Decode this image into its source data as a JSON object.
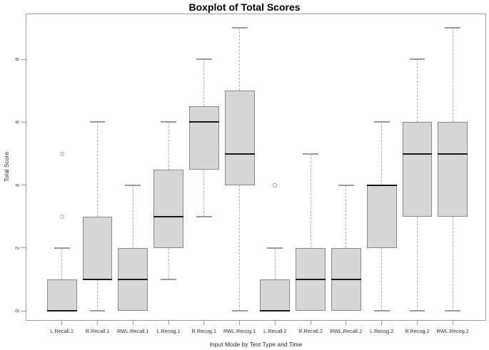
{
  "chart_data": {
    "type": "boxplot",
    "title": "Boxplot of Total Scores",
    "xlabel": "Input Mode by Test Type and Time",
    "ylabel": "Total Score",
    "yticks": [
      0,
      2,
      4,
      6,
      8
    ],
    "ylim": [
      -0.31,
      9.45
    ],
    "xlim": [
      -0.02,
      12.94
    ],
    "grid": false,
    "legend": "none",
    "categories": [
      "L.Recall.1",
      "R.Recall.1",
      "RWL.Recall.1",
      "L.Recog.1",
      "R.Recog.1",
      "RWL.Recog.1",
      "L.Recall.2",
      "R.Recall.2",
      "RWL.Recall.2",
      "L.Recog.2",
      "R.Recog.2",
      "RWL.Recog.2"
    ],
    "series": [
      {
        "name": "L.Recall.1",
        "whisker_low": 0,
        "q1": 0,
        "median": 0,
        "q3": 1,
        "whisker_high": 2,
        "outliers": [
          3,
          5
        ]
      },
      {
        "name": "R.Recall.1",
        "whisker_low": 0,
        "q1": 1,
        "median": 1,
        "q3": 3,
        "whisker_high": 6,
        "outliers": []
      },
      {
        "name": "RWL.Recall.1",
        "whisker_low": 0,
        "q1": 0,
        "median": 1,
        "q3": 2,
        "whisker_high": 4,
        "outliers": []
      },
      {
        "name": "L.Recog.1",
        "whisker_low": 1,
        "q1": 2,
        "median": 3,
        "q3": 4.5,
        "whisker_high": 6,
        "outliers": []
      },
      {
        "name": "R.Recog.1",
        "whisker_low": 3,
        "q1": 4.5,
        "median": 6,
        "q3": 6.5,
        "whisker_high": 8,
        "outliers": []
      },
      {
        "name": "RWL.Recog.1",
        "whisker_low": 0,
        "q1": 4,
        "median": 5,
        "q3": 7,
        "whisker_high": 9,
        "outliers": []
      },
      {
        "name": "L.Recall.2",
        "whisker_low": 0,
        "q1": 0,
        "median": 0,
        "q3": 1,
        "whisker_high": 2,
        "outliers": [
          4
        ]
      },
      {
        "name": "R.Recall.2",
        "whisker_low": 0,
        "q1": 0,
        "median": 1,
        "q3": 2,
        "whisker_high": 5,
        "outliers": []
      },
      {
        "name": "RWL.Recall.2",
        "whisker_low": 0,
        "q1": 0,
        "median": 1,
        "q3": 2,
        "whisker_high": 4,
        "outliers": []
      },
      {
        "name": "L.Recog.2",
        "whisker_low": 0,
        "q1": 2,
        "median": 4,
        "q3": 4,
        "whisker_high": 6,
        "outliers": []
      },
      {
        "name": "R.Recog.2",
        "whisker_low": 0,
        "q1": 3,
        "median": 5,
        "q3": 6,
        "whisker_high": 8,
        "outliers": []
      },
      {
        "name": "RWL.Recog.2",
        "whisker_low": 0,
        "q1": 3,
        "median": 5,
        "q3": 6,
        "whisker_high": 9,
        "outliers": []
      }
    ]
  },
  "colors": {
    "background": "#ffffff",
    "box_fill": "#d6d6d6",
    "box_border": "#8a8a8a",
    "median": "#1a1a1a",
    "whisker": "#b0b0b0",
    "whisker_cap": "#9a9a9a",
    "frame": "#a0a0a0",
    "text": "#2e2e2e",
    "title_text": "#000000"
  }
}
